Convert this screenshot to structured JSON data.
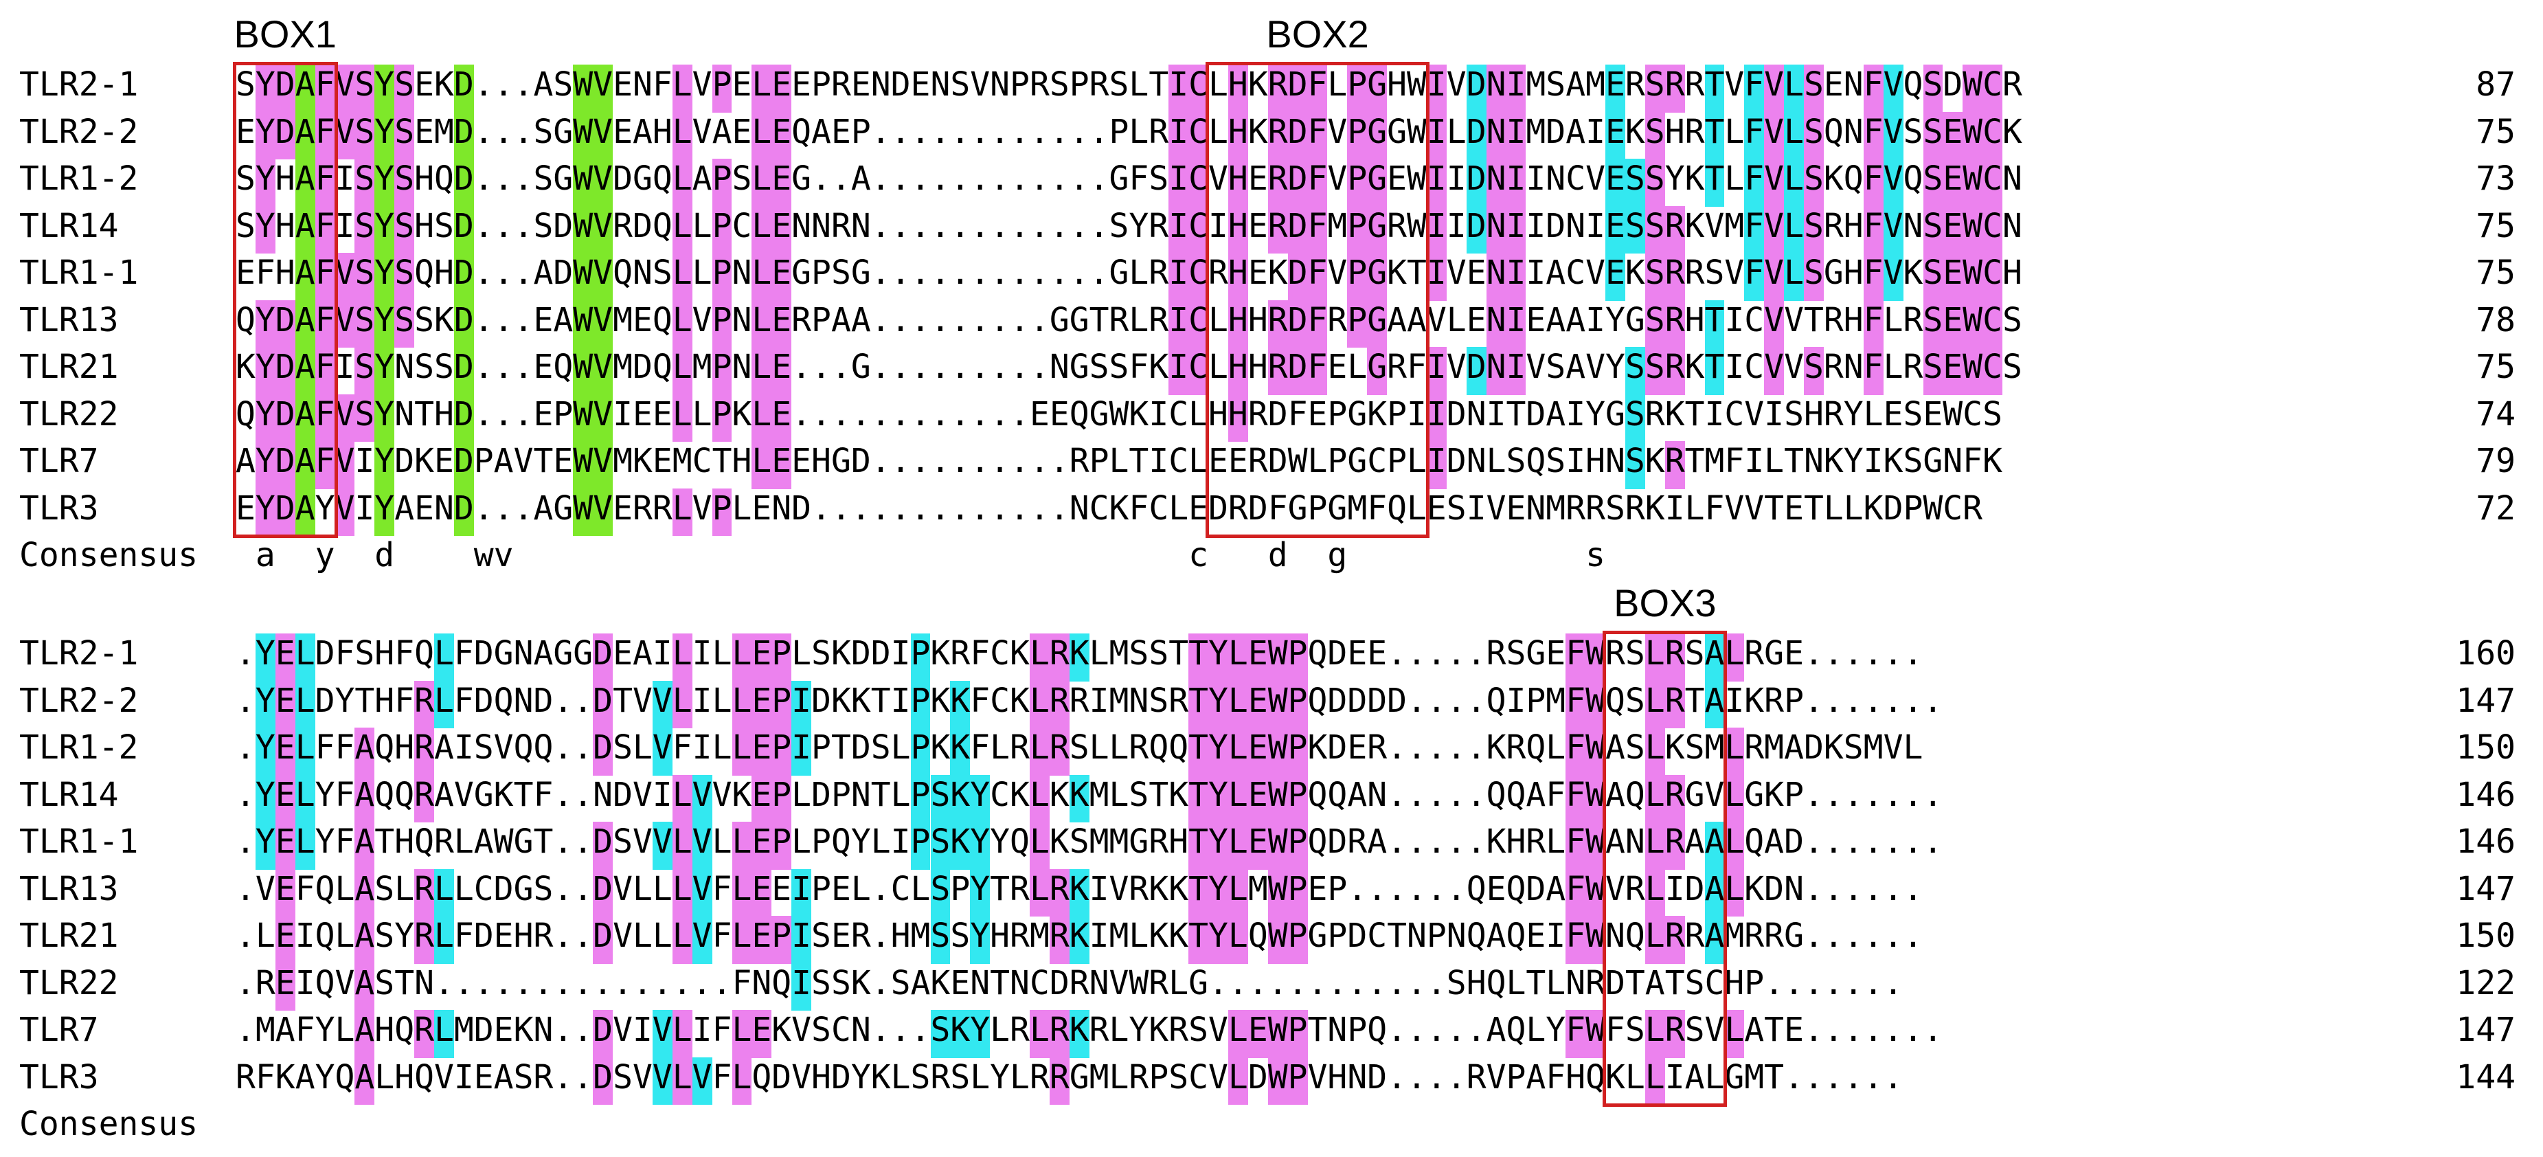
{
  "colors": {
    "green": "#7ee82a",
    "cyan": "#33e8f0",
    "magenta": "#ec82ee",
    "box": "#d22020"
  },
  "blocks": [
    {
      "box_labels": [
        "BOX1",
        "BOX2"
      ],
      "boxes": [
        {
          "label": "BOX1",
          "from": 0,
          "to": 4
        },
        {
          "label": "BOX2",
          "from": 49,
          "to": 59
        }
      ],
      "rows": [
        {
          "name": "TLR2-1",
          "seq": "SYDAFVSYSEKD...ASWVENFLVPELEEPRENDENSVNPRSPRSLTICLHKRDFLPGHWIVDNIMSAMERSRRTVFVLSENFVQSDWCR",
          "num": "87"
        },
        {
          "name": "TLR2-2",
          "seq": "EYDAFVSYSEMD...SGWVEAHLVAELEQAEP............PLRICLHKRDFVPGGWILDNIMDAIEKSHRTLFVLSQNFVSSEWCK",
          "num": "75"
        },
        {
          "name": "TLR1-2",
          "seq": "SYHAFISYSHQD...SGWVDGQLAPSLEG..A............GFSICVHERDFVPGEWIIDNIINCVESSYKTLFVLSKQFVQSEWCN",
          "num": "73"
        },
        {
          "name": "TLR14",
          "seq": "SYHAFISYSHSD...SDWVRDQLLPCLENNRN............SYRICIHERDFMPGRWIIDNIIDNIESSRKVMFVLSRHFVNSEWCN",
          "num": "75"
        },
        {
          "name": "TLR1-1",
          "seq": "EFHAFVSYSQHD...ADWVQNSLLPNLEGPSG............GLRICRHEKDFVPGKTIVENIIACVEKSRRSVFVLSGHFVKSEWCH",
          "num": "75"
        },
        {
          "name": "TLR13",
          "seq": "QYDAFVSYSSKD...EAWVMEQLVPNLERPAA.........GGTRLRICLHHRDFRPGAAVLENIEAAIYGSRHTICVVTRHFLRSEWCS",
          "num": "78"
        },
        {
          "name": "TLR21",
          "seq": "KYDAFISYNSSD...EQWVMDQLMPNLE...G.........NGSSFKICLHHRDFELGRFIVDNIVSAVYSSRKTICVVSRNFLRSEWCS",
          "num": "75"
        },
        {
          "name": "TLR22",
          "seq": "QYDAFVSYNTHD...EPWVIEELLPKLE............EEQGWKICLHHRDFEPGKPIIDNITDAIYGSRKTICVISHRYLESEWCS",
          "num": "74"
        },
        {
          "name": "TLR7",
          "seq": "AYDAFVIYDKEDPAVTEWVMKEMCTHLEEHGD..........RPLTICLEERDWLPGCPLIDNLSQSIHNSKRTMFILTNKYIKSGNFK",
          "num": "79"
        },
        {
          "name": "TLR3",
          "seq": "EYDAYVIYAEND...AGWVERRLVPLEND.............NCKFCLEDRDFGPGMFQLESIVENMRRSRKILFVVTETLLKDPWCR",
          "num": "72"
        },
        {
          "name": "Consensus",
          "seq": " a  y  d    wv                                  c   d  g            s",
          "num": ""
        }
      ]
    },
    {
      "box_labels": [
        "BOX3"
      ],
      "boxes": [
        {
          "label": "BOX3",
          "from": 69,
          "to": 74
        }
      ],
      "rows": [
        {
          "name": "TLR2-1",
          "seq": ".YELDFSHFQLFDGNAGGDEAILILLEPLSKDDIPKRFCKLRKLMSSTTYLEWPQDEE.....RSGEFWRSLRSALRGE......",
          "num": "160"
        },
        {
          "name": "TLR2-2",
          "seq": ".YELDYTHFRLFDQND..DTVVLILLEPIDKKTIPKKFCKLRRIMNSRTYLEWPQDDDD....QIPMFWQSLRTAIKRP.......",
          "num": "147"
        },
        {
          "name": "TLR1-2",
          "seq": ".YELFFAQHRAISVQQ..DSLVFILLEPIPTDSLPKKFLRLRSLLRQQTYLEWPKDER.....KRQLFWASLKSMLRMADKSMVL",
          "num": "150"
        },
        {
          "name": "TLR14",
          "seq": ".YELYFAQQRAVGKTF..NDVILVVKEPLDPNTLPSKYCKLKKMLSTKTYLEWPQQAN.....QQAFFWAQLRGVLGKP.......",
          "num": "146"
        },
        {
          "name": "TLR1-1",
          "seq": ".YELYFATHQRLAWGT..DSVVLVLLEPLPQYLIPSKYYQLKSMMGRHTYLEWPQDRA.....KHRLFWANLRAALQAD.......",
          "num": "146"
        },
        {
          "name": "TLR13",
          "seq": ".VEFQLASLRLLCDGS..DVLLLVFLEEIPEL.CLSPYTRLRKIVRKKTYLMWPEP......QEQDAFWVRLIDALKDN......",
          "num": "147"
        },
        {
          "name": "TLR21",
          "seq": ".LEIQLASYRLFDEHR..DVLLLVFLEPISER.HMSSYHRMRKIMLKKTYLQWPGPDCTNPNQAQEIFWNQLRRAMRRG......",
          "num": "150"
        },
        {
          "name": "TLR22",
          "seq": ".REIQVASTN...............FNQISSK.SAKENTNCDRNVWRLG............SHQLTLNRDTATSCHP.......",
          "num": "122"
        },
        {
          "name": "TLR7",
          "seq": ".MAFYLAHQRLMDEKN..DVIVLIFLEKVSCN...SKYLRLRKRLYKRSVLEWPTNPQ.....AQLYFWFSLRSVLATE.......",
          "num": "147"
        },
        {
          "name": "TLR3",
          "seq": "RFKAYQALHQVIEASR..DSVVLVFLQDVHDYKLSRSLYLRRGMLRPSCVLDWPVHND....RVPAFHQKLLIALGMT......",
          "num": "144"
        },
        {
          "name": "Consensus",
          "seq": "",
          "num": ""
        }
      ]
    }
  ]
}
